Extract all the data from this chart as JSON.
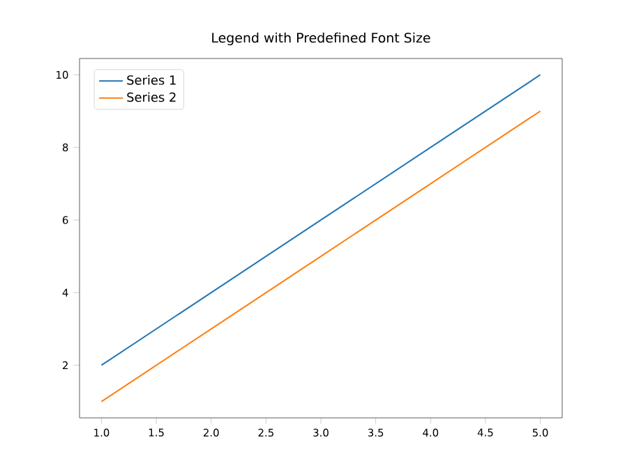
{
  "chart_data": {
    "type": "line",
    "title": "Legend with Predefined Font Size",
    "x": [
      1,
      2,
      3,
      4,
      5
    ],
    "series": [
      {
        "name": "Series 1",
        "color": "#1f77b4",
        "values": [
          2,
          4,
          6,
          8,
          10
        ]
      },
      {
        "name": "Series 2",
        "color": "#ff7f0e",
        "values": [
          1,
          3,
          5,
          7,
          9
        ]
      }
    ],
    "xlim": [
      0.8,
      5.2
    ],
    "ylim": [
      0.55,
      10.45
    ],
    "xticks": [
      {
        "value": 1,
        "label": "1.0"
      },
      {
        "value": 1.5,
        "label": "1.5"
      },
      {
        "value": 2,
        "label": "2.0"
      },
      {
        "value": 2.5,
        "label": "2.5"
      },
      {
        "value": 3,
        "label": "3.0"
      },
      {
        "value": 3.5,
        "label": "3.5"
      },
      {
        "value": 4,
        "label": "4.0"
      },
      {
        "value": 4.5,
        "label": "4.5"
      },
      {
        "value": 5,
        "label": "5.0"
      }
    ],
    "yticks": [
      2,
      4,
      6,
      8,
      10
    ],
    "legend": "top left",
    "grid": false,
    "marker": "none",
    "line_style": "solid"
  }
}
